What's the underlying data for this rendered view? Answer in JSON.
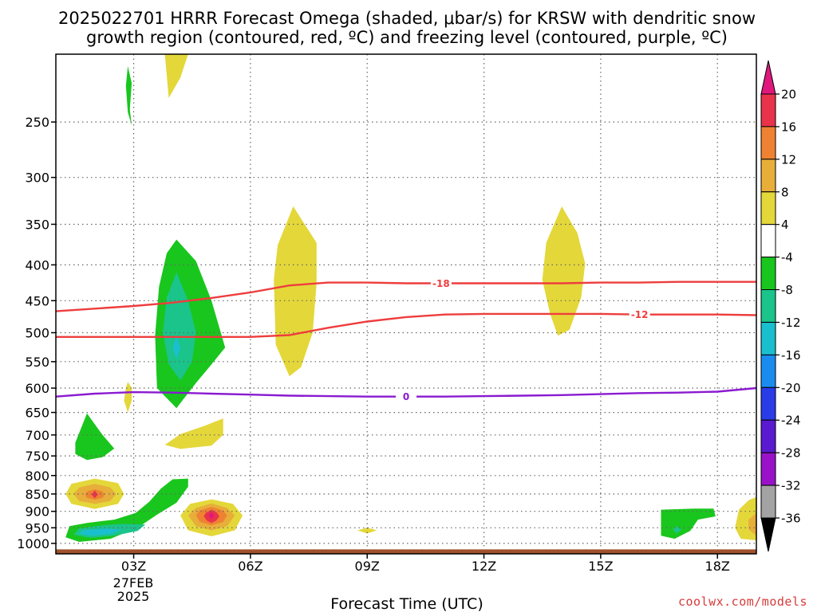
{
  "title_line1": "2025022701 HRRR Forecast Omega (shaded, μbar/s) for KRSW with dendritic snow",
  "title_line2": "growth region (contoured, red, ºC) and freezing level (contoured, purple, ºC)",
  "credit": "coolwx.com/models",
  "colors": {
    "temp_contour": "#ee3d3d",
    "freezing_contour": "#8a1ad0",
    "ground": "#a0522d",
    "grid": "#666666"
  },
  "chart_data": {
    "type": "heatmap",
    "xlabel": "Forecast Time (UTC)",
    "x_ticks": [
      {
        "hour": 3,
        "label": "03Z"
      },
      {
        "hour": 6,
        "label": "06Z"
      },
      {
        "hour": 9,
        "label": "09Z"
      },
      {
        "hour": 12,
        "label": "12Z"
      },
      {
        "hour": 15,
        "label": "15Z"
      },
      {
        "hour": 18,
        "label": "18Z"
      }
    ],
    "date_label": [
      "27FEB",
      "2025"
    ],
    "xlim_hours": [
      1,
      19
    ],
    "ylabel": "",
    "y_scale": "log-pressure",
    "ylim_hpa": [
      1035,
      200
    ],
    "y_ticks": [
      250,
      300,
      350,
      400,
      450,
      500,
      550,
      600,
      650,
      700,
      750,
      800,
      850,
      900,
      950,
      1000
    ],
    "grid": true,
    "surface_pressure_hpa": 1020,
    "colorbar": {
      "labels": [
        "20",
        "16",
        "12",
        "8",
        "4",
        "-4",
        "-8",
        "-12",
        "-16",
        "-20",
        "-24",
        "-28",
        "-32",
        "-36"
      ],
      "bins": [
        {
          "range": "16 to 20",
          "color": "#e8334b"
        },
        {
          "range": "12 to 16",
          "color": "#ef8232"
        },
        {
          "range": "8 to 12",
          "color": "#e7ae3a"
        },
        {
          "range": "4 to 8",
          "color": "#e4d73a"
        },
        {
          "range": "-4 to 4",
          "color": "#ffffff"
        },
        {
          "range": "-8 to -4",
          "color": "#19c61d"
        },
        {
          "range": "-12 to -8",
          "color": "#1ac48a"
        },
        {
          "range": "-16 to -12",
          "color": "#1abfcf"
        },
        {
          "range": "-20 to -16",
          "color": "#1a8cef"
        },
        {
          "range": "-24 to -20",
          "color": "#2a3ce8"
        },
        {
          "range": "-28 to -24",
          "color": "#5a1ad0"
        },
        {
          "range": "-32 to -28",
          "color": "#9a12c8"
        },
        {
          "range": "-36 to -32",
          "color": "#a3a3a3"
        }
      ],
      "top_color": "#e0187e",
      "bottom_color": "#000000"
    },
    "contours": [
      {
        "label": "-18",
        "label_hour": 10.9,
        "color": "#ee3d3d",
        "points": [
          [
            1.0,
            466
          ],
          [
            2.0,
            462
          ],
          [
            3.0,
            458
          ],
          [
            4.0,
            453
          ],
          [
            5.0,
            446
          ],
          [
            6.0,
            438
          ],
          [
            7.0,
            428
          ],
          [
            8.0,
            424
          ],
          [
            9.0,
            424
          ],
          [
            10.0,
            425
          ],
          [
            11.0,
            425
          ],
          [
            12.0,
            425
          ],
          [
            13.0,
            425
          ],
          [
            14.0,
            425
          ],
          [
            15.0,
            424
          ],
          [
            16.0,
            424
          ],
          [
            17.0,
            423
          ],
          [
            18.0,
            423
          ],
          [
            19.0,
            423
          ]
        ]
      },
      {
        "label": "-12",
        "label_hour": 16.0,
        "color": "#ee3d3d",
        "points": [
          [
            1.0,
            507
          ],
          [
            2.0,
            507
          ],
          [
            3.0,
            507
          ],
          [
            4.0,
            507
          ],
          [
            5.0,
            507
          ],
          [
            6.0,
            507
          ],
          [
            7.0,
            504
          ],
          [
            8.0,
            492
          ],
          [
            9.0,
            482
          ],
          [
            10.0,
            475
          ],
          [
            11.0,
            471
          ],
          [
            12.0,
            470
          ],
          [
            13.0,
            470
          ],
          [
            14.0,
            470
          ],
          [
            15.0,
            470
          ],
          [
            16.0,
            471
          ],
          [
            17.0,
            471
          ],
          [
            18.0,
            471
          ],
          [
            19.0,
            472
          ]
        ]
      },
      {
        "label": "0",
        "label_hour": 10.0,
        "color": "#8a1ad0",
        "points": [
          [
            1.0,
            617
          ],
          [
            2.0,
            611
          ],
          [
            3.0,
            608
          ],
          [
            4.0,
            609
          ],
          [
            5.0,
            611
          ],
          [
            6.0,
            613
          ],
          [
            7.0,
            615
          ],
          [
            8.0,
            616
          ],
          [
            9.0,
            617
          ],
          [
            10.0,
            617
          ],
          [
            11.0,
            617
          ],
          [
            12.0,
            616
          ],
          [
            13.0,
            615
          ],
          [
            14.0,
            614
          ],
          [
            15.0,
            612
          ],
          [
            16.0,
            610
          ],
          [
            17.0,
            609
          ],
          [
            18.0,
            607
          ],
          [
            19.0,
            600
          ]
        ]
      }
    ],
    "shaded_regions": [
      {
        "band": "4 to 8",
        "points": [
          [
            3.8,
            200
          ],
          [
            4.4,
            200
          ],
          [
            4.2,
            216
          ],
          [
            3.9,
            231
          ]
        ]
      },
      {
        "band": "-8 to -4",
        "points": [
          [
            2.85,
            208
          ],
          [
            2.95,
            220
          ],
          [
            2.9,
            240
          ],
          [
            2.95,
            253
          ],
          [
            2.85,
            242
          ],
          [
            2.8,
            222
          ]
        ]
      },
      {
        "band": "4 to 8",
        "points": [
          [
            7.1,
            330
          ],
          [
            7.7,
            372
          ],
          [
            7.7,
            425
          ],
          [
            7.6,
            500
          ],
          [
            7.3,
            560
          ],
          [
            7.0,
            577
          ],
          [
            6.65,
            520
          ],
          [
            6.6,
            420
          ],
          [
            6.7,
            375
          ]
        ]
      },
      {
        "band": "4 to 8",
        "points": [
          [
            14.0,
            330
          ],
          [
            14.4,
            360
          ],
          [
            14.6,
            398
          ],
          [
            14.5,
            445
          ],
          [
            14.2,
            495
          ],
          [
            13.9,
            505
          ],
          [
            13.7,
            470
          ],
          [
            13.5,
            420
          ],
          [
            13.6,
            372
          ]
        ]
      },
      {
        "band": "-8 to -4",
        "points": [
          [
            4.1,
            368
          ],
          [
            4.6,
            395
          ],
          [
            5.0,
            450
          ],
          [
            5.35,
            525
          ],
          [
            5.0,
            555
          ],
          [
            4.6,
            590
          ],
          [
            4.1,
            641
          ],
          [
            3.6,
            600
          ],
          [
            3.55,
            505
          ],
          [
            3.65,
            430
          ],
          [
            3.85,
            385
          ]
        ]
      },
      {
        "band": "-12 to -8",
        "points": [
          [
            4.1,
            410
          ],
          [
            4.4,
            450
          ],
          [
            4.6,
            500
          ],
          [
            4.5,
            550
          ],
          [
            4.2,
            585
          ],
          [
            3.9,
            555
          ],
          [
            3.75,
            500
          ],
          [
            3.85,
            445
          ]
        ]
      },
      {
        "band": "-16 to -12",
        "points": [
          [
            4.1,
            505
          ],
          [
            4.2,
            525
          ],
          [
            4.1,
            545
          ],
          [
            4.0,
            525
          ]
        ]
      },
      {
        "band": "4 to 8",
        "points": [
          [
            2.85,
            588
          ],
          [
            2.95,
            600
          ],
          [
            2.95,
            625
          ],
          [
            2.85,
            650
          ],
          [
            2.75,
            625
          ],
          [
            2.8,
            600
          ]
        ]
      },
      {
        "band": "4 to 8",
        "points": [
          [
            5.3,
            663
          ],
          [
            5.3,
            700
          ],
          [
            5.0,
            725
          ],
          [
            4.2,
            733
          ],
          [
            3.8,
            723
          ],
          [
            4.2,
            698
          ],
          [
            4.8,
            680
          ]
        ]
      },
      {
        "band": "-8 to -4",
        "points": [
          [
            1.8,
            652
          ],
          [
            2.2,
            700
          ],
          [
            2.5,
            732
          ],
          [
            2.2,
            753
          ],
          [
            1.8,
            760
          ],
          [
            1.5,
            745
          ],
          [
            1.5,
            718
          ]
        ]
      },
      {
        "band": "4 to 8",
        "points": [
          [
            2.0,
            808
          ],
          [
            2.6,
            820
          ],
          [
            2.75,
            850
          ],
          [
            2.6,
            878
          ],
          [
            2.0,
            893
          ],
          [
            1.4,
            878
          ],
          [
            1.25,
            850
          ],
          [
            1.4,
            822
          ]
        ]
      },
      {
        "band": "8 to 12",
        "points": [
          [
            2.0,
            822
          ],
          [
            2.4,
            832
          ],
          [
            2.55,
            850
          ],
          [
            2.4,
            870
          ],
          [
            2.0,
            878
          ],
          [
            1.6,
            870
          ],
          [
            1.45,
            850
          ],
          [
            1.6,
            832
          ]
        ]
      },
      {
        "band": "12 to 16",
        "points": [
          [
            2.0,
            837
          ],
          [
            2.2,
            843
          ],
          [
            2.25,
            852
          ],
          [
            2.2,
            861
          ],
          [
            2.0,
            866
          ],
          [
            1.8,
            861
          ],
          [
            1.75,
            852
          ],
          [
            1.8,
            843
          ]
        ]
      },
      {
        "band": "16 to 20",
        "points": [
          [
            2.0,
            840
          ],
          [
            2.08,
            852
          ],
          [
            2.0,
            862
          ],
          [
            1.92,
            852
          ]
        ]
      },
      {
        "band": "-8 to -4",
        "points": [
          [
            4.0,
            810
          ],
          [
            4.4,
            808
          ],
          [
            4.4,
            830
          ],
          [
            4.1,
            875
          ],
          [
            3.6,
            910
          ],
          [
            3.1,
            950
          ],
          [
            2.4,
            985
          ],
          [
            1.6,
            995
          ],
          [
            1.25,
            980
          ],
          [
            1.35,
            945
          ],
          [
            1.8,
            935
          ],
          [
            2.5,
            925
          ],
          [
            3.05,
            905
          ],
          [
            3.4,
            872
          ],
          [
            3.7,
            835
          ]
        ]
      },
      {
        "band": "-12 to -8",
        "points": [
          [
            1.6,
            952
          ],
          [
            2.2,
            942
          ],
          [
            2.7,
            938
          ],
          [
            3.3,
            940
          ],
          [
            3.1,
            960
          ],
          [
            2.5,
            975
          ],
          [
            1.9,
            982
          ],
          [
            1.45,
            972
          ]
        ]
      },
      {
        "band": "-16 to -12",
        "points": [
          [
            1.7,
            958
          ],
          [
            2.3,
            952
          ],
          [
            2.7,
            956
          ],
          [
            2.4,
            970
          ],
          [
            1.9,
            975
          ],
          [
            1.6,
            968
          ]
        ]
      },
      {
        "band": "4 to 8",
        "points": [
          [
            5.0,
            865
          ],
          [
            5.55,
            878
          ],
          [
            5.8,
            912
          ],
          [
            5.6,
            958
          ],
          [
            5.0,
            977
          ],
          [
            4.4,
            958
          ],
          [
            4.2,
            912
          ],
          [
            4.45,
            878
          ]
        ]
      },
      {
        "band": "8 to 12",
        "points": [
          [
            5.0,
            877
          ],
          [
            5.4,
            890
          ],
          [
            5.6,
            912
          ],
          [
            5.4,
            945
          ],
          [
            5.0,
            958
          ],
          [
            4.6,
            945
          ],
          [
            4.4,
            912
          ],
          [
            4.6,
            890
          ]
        ]
      },
      {
        "band": "12 to 16",
        "points": [
          [
            5.0,
            887
          ],
          [
            5.3,
            897
          ],
          [
            5.4,
            912
          ],
          [
            5.3,
            932
          ],
          [
            5.0,
            942
          ],
          [
            4.7,
            932
          ],
          [
            4.6,
            912
          ],
          [
            4.7,
            897
          ]
        ]
      },
      {
        "band": "16 to 20",
        "points": [
          [
            5.0,
            895
          ],
          [
            5.15,
            905
          ],
          [
            5.2,
            915
          ],
          [
            5.12,
            928
          ],
          [
            5.0,
            935
          ],
          [
            4.88,
            928
          ],
          [
            4.8,
            915
          ],
          [
            4.85,
            905
          ]
        ]
      },
      {
        "band": "above 20",
        "points": [
          [
            5.0,
            902
          ],
          [
            5.07,
            912
          ],
          [
            5.0,
            924
          ],
          [
            4.93,
            912
          ]
        ]
      },
      {
        "band": "4 to 8",
        "points": [
          [
            9.0,
            950
          ],
          [
            9.25,
            958
          ],
          [
            9.0,
            968
          ],
          [
            8.75,
            958
          ]
        ]
      },
      {
        "band": "-8 to -4",
        "points": [
          [
            16.55,
            895
          ],
          [
            17.4,
            892
          ],
          [
            17.9,
            892
          ],
          [
            17.95,
            915
          ],
          [
            17.5,
            925
          ],
          [
            17.3,
            960
          ],
          [
            16.9,
            985
          ],
          [
            16.55,
            975
          ],
          [
            16.55,
            930
          ]
        ]
      },
      {
        "band": "-12 to -8",
        "points": [
          [
            16.95,
            945
          ],
          [
            17.08,
            955
          ],
          [
            16.95,
            968
          ],
          [
            16.85,
            955
          ]
        ]
      },
      {
        "band": "4 to 8",
        "points": [
          [
            19.0,
            858
          ],
          [
            19.0,
            990
          ],
          [
            18.6,
            985
          ],
          [
            18.45,
            950
          ],
          [
            18.55,
            895
          ],
          [
            18.8,
            868
          ]
        ]
      },
      {
        "band": "8 to 12",
        "points": [
          [
            19.0,
            905
          ],
          [
            19.0,
            975
          ],
          [
            18.8,
            955
          ],
          [
            18.8,
            925
          ]
        ]
      }
    ]
  }
}
